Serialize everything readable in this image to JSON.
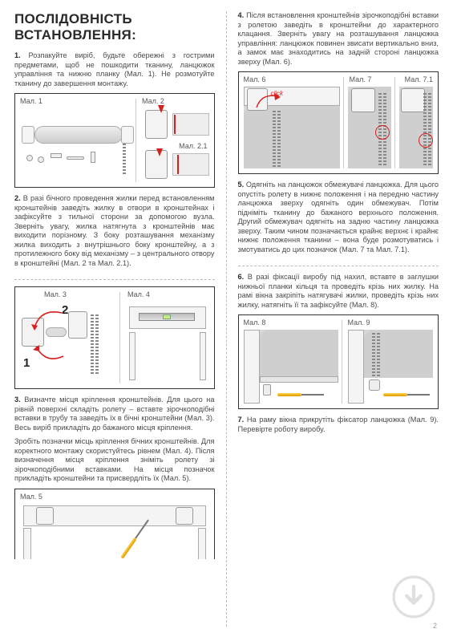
{
  "title": "Послідовність встановлення:",
  "left": {
    "p1": "<b>1.</b> Розпакуйте виріб, будьте обережні з гострими предметами, щоб не пошкодити тканину, ланцюжок управління та нижню планку (Мал. 1). Не розмотуйте тканину до завершення монтажу.",
    "fig1_label": "Мал. 1",
    "fig2_label": "Мал. 2",
    "fig21_label": "Мал. 2.1",
    "p2": "<b>2.</b> В разі бічного проведення жилки перед встановленням кронштейнів заведіть жилку в отвори в кронштейнах і зафіксуйте з тильної сторони за допомогою вузла. Зверніть увагу, жилка натягнута з кронштейнів має виходити порізному. З боку розташування механізму жилка виходить з внутрішнього боку кронштейну, а з протилежного боку від механізму – з центрального отвору в кронштейні (Мал. 2 та Мал. 2.1).",
    "fig3_label": "Мал. 3",
    "fig4_label": "Мал. 4",
    "num1": "1",
    "num2": "2",
    "p3a": "<b>3.</b> Визначте місця кріплення кронштейнів. Для цього на рівній поверхні складіть ролету – вставте зірочкоподібні вставки в трубу та заведіть їх в бічні кронштейни (Мал. 3). Весь виріб прикладіть до бажаного місця кріплення.",
    "p3b": "Зробіть позначки місць кріплення бічних кронштейнів. Для коректного монтажу скористуйтесь рівнем (Мал. 4). Після визначення місця кріплення зніміть ролету зі зірочкоподібними вставками. На місця позначок прикладіть кронштейни та присвердліть їх (Мал. 5).",
    "fig5_label": "Мал. 5"
  },
  "right": {
    "p4": "<b>4.</b> Після встановлення кронштейнів зірочкоподібні вставки з ролетою заведіть в кронштейни до характерного клацання. Зверніть увагу на розташування ланцюжка управління: ланцюжок повинен звисати вертикально вниз, а замок має знаходитись на задній стороні ланцюжка зверху (Мал. 6).",
    "fig6_label": "Мал. 6",
    "fig7_label": "Мал. 7",
    "fig71_label": "Мал. 7.1",
    "click": "click",
    "p5": "<b>5.</b> Одягніть на ланцюжок обмежувачі ланцюжка. Для цього опустіть ролету в нижнє положення і на передню частину ланцюжка зверху одягніть один обмежувач. Потім підніміть тканину до бажаного верхнього положення. Другий обмежувач одягніть на задню частину ланцюжка зверху. Таким чином позначається крайнє верхнє і крайнє нижнє положення тканини – вона буде розмотуватись і змотуватись до цих позначок (Мал. 7 та Мал. 7.1).",
    "p6": "<b>6.</b> В разі фіксації виробу під нахил, вставте в заглушки нижньої планки кільця та проведіть крізь них жилку. На рамі вікна закріпіть натягувачі жилки, проведіть крізь них жилку, натягніть її та зафіксуйте (Мал. 8).",
    "fig8_label": "Мал. 8",
    "fig9_label": "Мал. 9",
    "p7": "<b>7.</b> На раму вікна прикрутіть фіксатор ланцюжка (Мал. 9). Перевірте роботу виробу."
  },
  "pagenum": "2",
  "colors": {
    "red": "#d62020",
    "grey": "#cfcfcf"
  }
}
